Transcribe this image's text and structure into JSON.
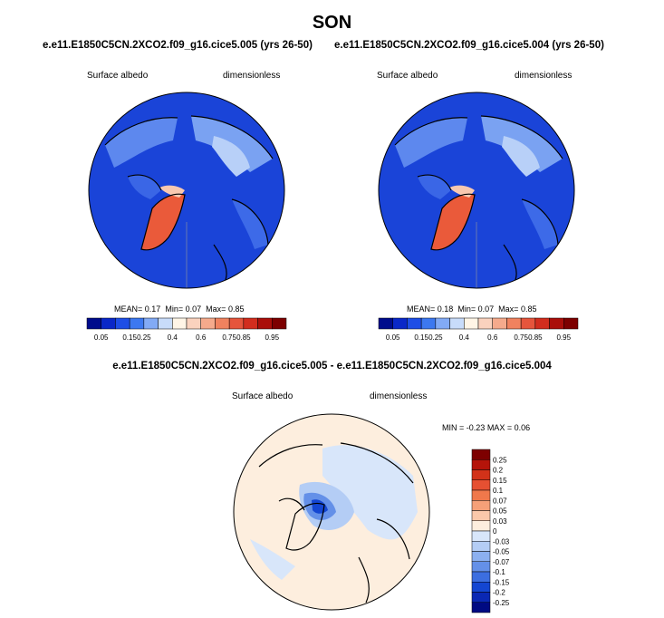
{
  "page": {
    "season": "SON",
    "colors": {
      "land": "#1a44d8",
      "text": "#000000"
    }
  },
  "chart_data": [
    {
      "type": "heatmap",
      "title": "e.e11.E1850C5CN.2XCO2.f09_g16.cice5.005 (yrs 26-50)",
      "field_label": "Surface albedo",
      "units_label": "dimensionless",
      "projection": "north polar stereographic",
      "stats_text": {
        "mean_label": "MEAN=",
        "mean": "0.17",
        "min_label": "Min=",
        "min": "0.07",
        "max_label": "Max=",
        "max": "0.85"
      },
      "colorbar": {
        "orientation": "horizontal",
        "levels": [
          "0.05",
          "0.15",
          "0.25",
          "0.4",
          "0.6",
          "0.75",
          "0.85",
          "0.95"
        ],
        "colors": [
          "#000c8c",
          "#0a28c8",
          "#1e4ee6",
          "#3c78f0",
          "#82aaf5",
          "#c8dcfa",
          "#fff5e6",
          "#fad2be",
          "#f5aa8c",
          "#f0825f",
          "#e6553c",
          "#d22d1e",
          "#aa0f0a",
          "#7d0000"
        ]
      }
    },
    {
      "type": "heatmap",
      "title": "e.e11.E1850C5CN.2XCO2.f09_g16.cice5.004 (yrs 26-50)",
      "field_label": "Surface albedo",
      "units_label": "dimensionless",
      "projection": "north polar stereographic",
      "stats_text": {
        "mean_label": "MEAN=",
        "mean": "0.18",
        "min_label": "Min=",
        "min": "0.07",
        "max_label": "Max=",
        "max": "0.85"
      },
      "colorbar": {
        "orientation": "horizontal",
        "levels": [
          "0.05",
          "0.15",
          "0.25",
          "0.4",
          "0.6",
          "0.75",
          "0.85",
          "0.95"
        ],
        "colors": [
          "#000c8c",
          "#0a28c8",
          "#1e4ee6",
          "#3c78f0",
          "#82aaf5",
          "#c8dcfa",
          "#fff5e6",
          "#fad2be",
          "#f5aa8c",
          "#f0825f",
          "#e6553c",
          "#d22d1e",
          "#aa0f0a",
          "#7d0000"
        ]
      }
    },
    {
      "type": "heatmap",
      "title": "e.e11.E1850C5CN.2XCO2.f09_g16.cice5.005 - e.e11.E1850C5CN.2XCO2.f09_g16.cice5.004",
      "field_label": "Surface albedo",
      "units_label": "dimensionless",
      "projection": "north polar stereographic",
      "stats_text": {
        "min_label": "MIN =",
        "min": "-0.23",
        "max_label": "MAX =",
        "max": "0.06"
      },
      "colorbar": {
        "orientation": "vertical",
        "levels": [
          "0.25",
          "0.2",
          "0.15",
          "0.1",
          "0.07",
          "0.05",
          "0.03",
          "0",
          "-0.03",
          "-0.05",
          "-0.07",
          "-0.1",
          "-0.15",
          "-0.2",
          "-0.25"
        ],
        "colors": [
          "#7d0000",
          "#b4140a",
          "#d23219",
          "#e65032",
          "#f0784b",
          "#f5a078",
          "#fac8aa",
          "#fdeede",
          "#d8e6fa",
          "#b4cdf5",
          "#8cb0f0",
          "#6490e8",
          "#3c6ee0",
          "#1446d2",
          "#0a28b4",
          "#000a82"
        ]
      }
    }
  ]
}
